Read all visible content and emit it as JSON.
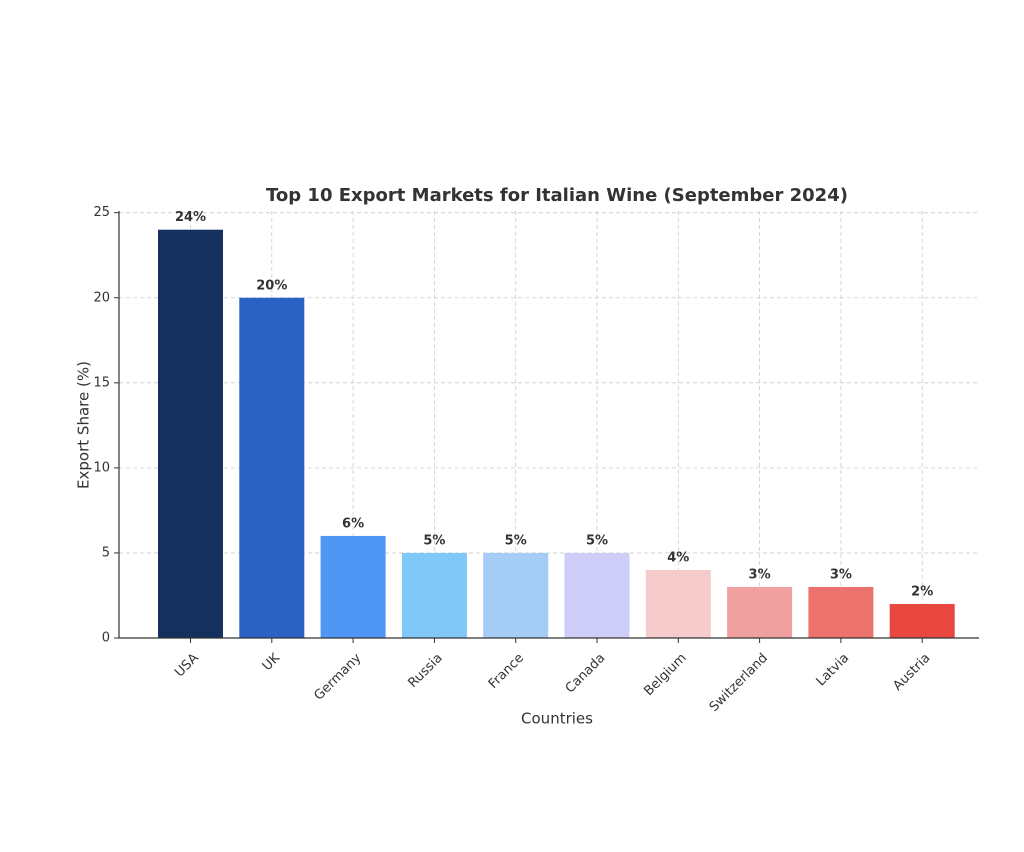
{
  "chart_data": {
    "type": "bar",
    "title": "Top 10 Export Markets for Italian Wine (September 2024)",
    "x_label": "Countries",
    "y_label": "Export Share (%)",
    "categories": [
      "USA",
      "UK",
      "Germany",
      "Russia",
      "France",
      "Canada",
      "Belgium",
      "Switzerland",
      "Latvia",
      "Austria"
    ],
    "values": [
      24,
      20,
      6,
      5,
      5,
      5,
      4,
      3,
      3,
      2
    ],
    "value_labels": [
      "24%",
      "20%",
      "6%",
      "5%",
      "5%",
      "5%",
      "4%",
      "3%",
      "3%",
      "2%"
    ],
    "colors": [
      "#14305e",
      "#2a62c4",
      "#5096f5",
      "#7fc8f8",
      "#a5cbf7",
      "#cdcdf7",
      "#f5cccb",
      "#f0a09e",
      "#ec736d",
      "#e8473f"
    ],
    "ylim": [
      0,
      25.1
    ],
    "yticks": [
      0,
      5,
      10,
      15,
      20,
      25
    ],
    "grid": true
  }
}
